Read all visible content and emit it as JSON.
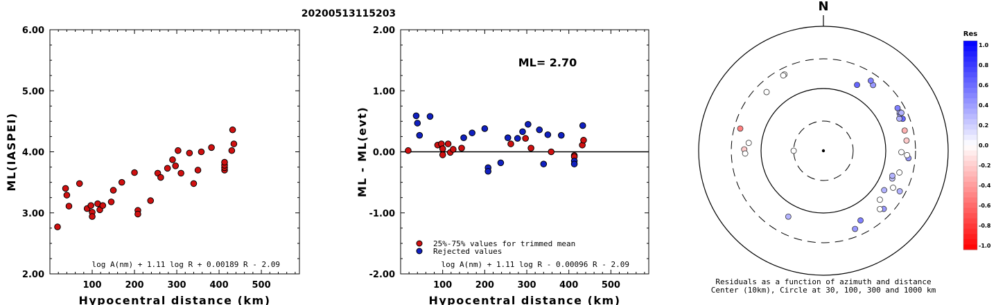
{
  "title": "20200513115203",
  "chart_data": [
    {
      "type": "scatter",
      "xlabel": "Hypocentral distance (km)",
      "ylabel": "ML(IASPEI)",
      "xlim": [
        0,
        590
      ],
      "ylim": [
        2.0,
        6.0
      ],
      "xticks": [
        "100",
        "200",
        "300",
        "400",
        "500"
      ],
      "yticks": [
        "2.00",
        "3.00",
        "4.00",
        "5.00",
        "6.00"
      ],
      "formula": "log A(nm) + 1.11 log R + 0.00189 R - 2.09",
      "colors": {
        "point": "#d01010"
      },
      "points": [
        [
          18,
          2.77
        ],
        [
          37,
          3.4
        ],
        [
          40,
          3.29
        ],
        [
          45,
          3.11
        ],
        [
          70,
          3.48
        ],
        [
          88,
          3.07
        ],
        [
          97,
          3.12
        ],
        [
          100,
          3.01
        ],
        [
          100,
          2.94
        ],
        [
          113,
          3.15
        ],
        [
          118,
          3.05
        ],
        [
          125,
          3.12
        ],
        [
          145,
          3.18
        ],
        [
          150,
          3.37
        ],
        [
          170,
          3.5
        ],
        [
          200,
          3.66
        ],
        [
          208,
          3.04
        ],
        [
          208,
          2.98
        ],
        [
          238,
          3.2
        ],
        [
          255,
          3.65
        ],
        [
          262,
          3.58
        ],
        [
          278,
          3.73
        ],
        [
          290,
          3.87
        ],
        [
          297,
          3.77
        ],
        [
          303,
          4.02
        ],
        [
          310,
          3.65
        ],
        [
          330,
          3.98
        ],
        [
          340,
          3.48
        ],
        [
          350,
          3.7
        ],
        [
          358,
          4.0
        ],
        [
          382,
          4.07
        ],
        [
          413,
          3.7
        ],
        [
          413,
          3.74
        ],
        [
          413,
          3.78
        ],
        [
          413,
          3.83
        ],
        [
          432,
          4.36
        ],
        [
          435,
          4.13
        ],
        [
          430,
          4.02
        ]
      ]
    },
    {
      "type": "scatter",
      "xlabel": "Hypocentral distance (km)",
      "ylabel": "ML - ML(evt)",
      "xlim": [
        0,
        590
      ],
      "ylim": [
        -2.0,
        2.0
      ],
      "xticks": [
        "100",
        "200",
        "300",
        "400",
        "500"
      ],
      "yticks": [
        "-2.00",
        "-1.00",
        "0.00",
        "1.00",
        "2.00"
      ],
      "annotation": "ML= 2.70",
      "formula": "log A(nm) + 1.11 log R - 0.00096 R - 2.09",
      "legend": [
        {
          "label": "25%-75% values for trimmed mean",
          "color": "#d01010"
        },
        {
          "label": "Rejected values",
          "color": "#1020c0"
        }
      ],
      "series": [
        {
          "name": "25%-75% values for trimmed mean",
          "points": [
            [
              18,
              0.02
            ],
            [
              88,
              0.11
            ],
            [
              97,
              0.13
            ],
            [
              100,
              0.05
            ],
            [
              100,
              -0.05
            ],
            [
              113,
              0.13
            ],
            [
              118,
              -0.01
            ],
            [
              125,
              0.04
            ],
            [
              145,
              0.06
            ],
            [
              262,
              0.13
            ],
            [
              297,
              0.22
            ],
            [
              310,
              0.06
            ],
            [
              358,
              0.0
            ],
            [
              413,
              -0.06
            ],
            [
              413,
              -0.08
            ],
            [
              432,
              0.11
            ],
            [
              435,
              0.19
            ]
          ]
        },
        {
          "name": "Rejected values",
          "points": [
            [
              37,
              0.59
            ],
            [
              40,
              0.47
            ],
            [
              45,
              0.27
            ],
            [
              70,
              0.58
            ],
            [
              150,
              0.23
            ],
            [
              170,
              0.31
            ],
            [
              200,
              0.38
            ],
            [
              208,
              -0.26
            ],
            [
              208,
              -0.32
            ],
            [
              238,
              -0.18
            ],
            [
              255,
              0.23
            ],
            [
              278,
              0.22
            ],
            [
              290,
              0.33
            ],
            [
              303,
              0.45
            ],
            [
              330,
              0.36
            ],
            [
              340,
              -0.2
            ],
            [
              350,
              0.28
            ],
            [
              382,
              0.27
            ],
            [
              413,
              -0.15
            ],
            [
              413,
              -0.2
            ],
            [
              433,
              0.43
            ]
          ]
        }
      ]
    },
    {
      "type": "polar-scatter",
      "north_label": "N",
      "caption_line1": "Residuals as a function of azimuth and distance",
      "caption_line2": "Center (10km), Circle at 30, 100, 300 and 1000 km",
      "colorbar_title": "Res",
      "colorbar_ticks": [
        "1.0",
        "0.8",
        "0.6",
        "0.4",
        "0.2",
        "0.0",
        "-0.2",
        "-0.4",
        "-0.6",
        "-0.8",
        "-1.0"
      ],
      "colors": {
        "positive": "#0000ff",
        "negative": "#ff0000",
        "zero": "#ffffff"
      },
      "points": [
        [
          333,
          238,
          0.0
        ],
        [
          332,
          235,
          0.0
        ],
        [
          316,
          205,
          0.0
        ],
        [
          285,
          240,
          -0.5
        ],
        [
          271,
          186,
          -0.2
        ],
        [
          268,
          180,
          0.0
        ],
        [
          276,
          160,
          0.0
        ],
        [
          270,
          30,
          0.0
        ],
        [
          37,
          210,
          0.4
        ],
        [
          34,
          228,
          0.5
        ],
        [
          27,
          154,
          0.6
        ],
        [
          68,
          235,
          0.6
        ],
        [
          67,
          210,
          0.3
        ],
        [
          64,
          229,
          0.4
        ],
        [
          63,
          236,
          0.3
        ],
        [
          64,
          246,
          0.3
        ],
        [
          60,
          236,
          0.5
        ],
        [
          76,
          220,
          -0.3
        ],
        [
          83,
          220,
          -0.2
        ],
        [
          95,
          234,
          0.4
        ],
        [
          91,
          178,
          0.0
        ],
        [
          106,
          185,
          0.0
        ],
        [
          118,
          184,
          0.0
        ],
        [
          112,
          155,
          0.2
        ],
        [
          123,
          145,
          0.3
        ],
        [
          110,
          150,
          0.3
        ],
        [
          131,
          158,
          0.0
        ],
        [
          134,
          221,
          0.4
        ],
        [
          136,
          201,
          0.0
        ],
        [
          118,
          243,
          0.3
        ],
        [
          158,
          226,
          0.4
        ],
        [
          152,
          185,
          0.5
        ],
        [
          208,
          158,
          0.3
        ],
        [
          93,
          220,
          0.0
        ]
      ]
    }
  ]
}
